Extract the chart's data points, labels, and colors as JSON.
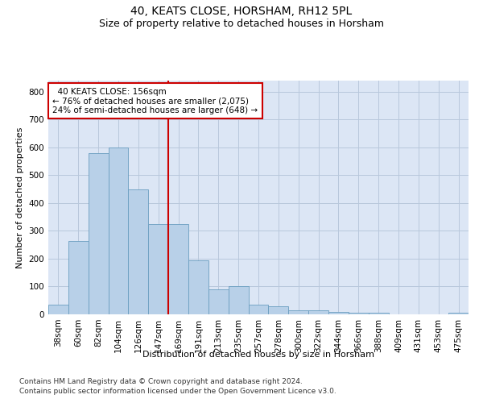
{
  "title": "40, KEATS CLOSE, HORSHAM, RH12 5PL",
  "subtitle": "Size of property relative to detached houses in Horsham",
  "xlabel": "Distribution of detached houses by size in Horsham",
  "ylabel": "Number of detached properties",
  "footer_line1": "Contains HM Land Registry data © Crown copyright and database right 2024.",
  "footer_line2": "Contains public sector information licensed under the Open Government Licence v3.0.",
  "categories": [
    "38sqm",
    "60sqm",
    "82sqm",
    "104sqm",
    "126sqm",
    "147sqm",
    "169sqm",
    "191sqm",
    "213sqm",
    "235sqm",
    "257sqm",
    "278sqm",
    "300sqm",
    "322sqm",
    "344sqm",
    "366sqm",
    "388sqm",
    "409sqm",
    "431sqm",
    "453sqm",
    "475sqm"
  ],
  "values": [
    35,
    265,
    580,
    600,
    450,
    325,
    325,
    195,
    90,
    100,
    35,
    30,
    15,
    15,
    10,
    5,
    5,
    0,
    0,
    0,
    5
  ],
  "bar_color": "#b8d0e8",
  "bar_edge_color": "#6a9ec0",
  "red_line_x": 5.5,
  "annotation_text": "  40 KEATS CLOSE: 156sqm\n← 76% of detached houses are smaller (2,075)\n24% of semi-detached houses are larger (648) →",
  "annotation_box_color": "#ffffff",
  "annotation_box_edge": "#cc0000",
  "ylim": [
    0,
    840
  ],
  "yticks": [
    0,
    100,
    200,
    300,
    400,
    500,
    600,
    700,
    800
  ],
  "background_color": "#ffffff",
  "plot_bg_color": "#dce6f5",
  "grid_color": "#b8c8dc",
  "title_fontsize": 10,
  "subtitle_fontsize": 9,
  "axis_label_fontsize": 8,
  "tick_fontsize": 7.5,
  "annotation_fontsize": 7.5,
  "footer_fontsize": 6.5
}
